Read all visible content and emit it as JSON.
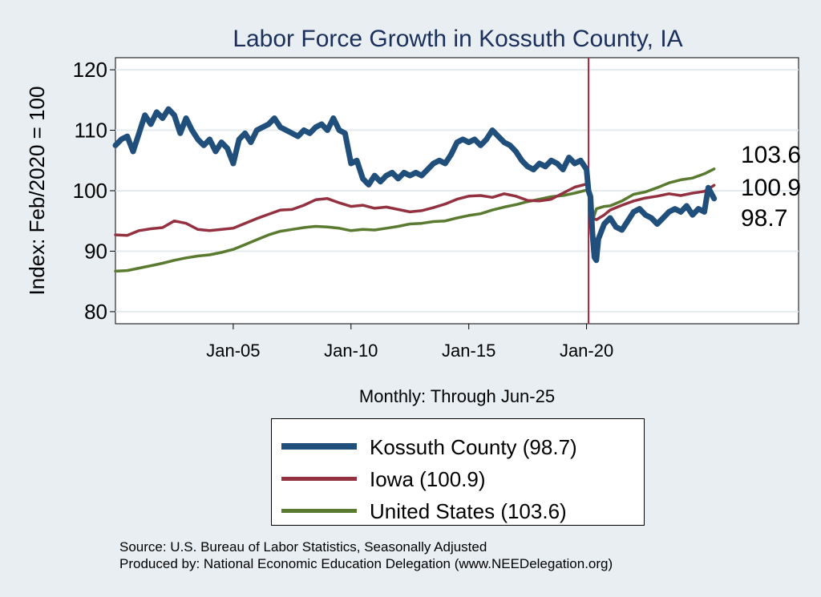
{
  "chart_data": {
    "type": "line",
    "title": "Labor Force Growth in Kossuth  County, IA",
    "xlabel": "Monthly: Through Jun-25",
    "ylabel": "Index: Feb/2020 = 100",
    "xlim": [
      "Jan-00",
      "Dec-28"
    ],
    "ylim": [
      78,
      122
    ],
    "x_ticks": [
      "Jan-05",
      "Jan-10",
      "Jan-15",
      "Jan-20"
    ],
    "y_ticks": [
      80,
      90,
      100,
      110,
      120
    ],
    "grid": true,
    "reference_line": {
      "x": "Feb-20",
      "color": "#b5243f"
    },
    "end_labels": [
      "103.6",
      "100.9",
      "98.7"
    ],
    "legend_position": "bottom",
    "series": [
      {
        "name": "Kossuth  County (98.7)",
        "color": "#1f4f7a",
        "points": [
          [
            "Jan-00",
            107.5
          ],
          [
            "Apr-00",
            108.5
          ],
          [
            "Jul-00",
            109.0
          ],
          [
            "Oct-00",
            106.5
          ],
          [
            "Jan-01",
            109.5
          ],
          [
            "Apr-01",
            112.5
          ],
          [
            "Jul-01",
            111.0
          ],
          [
            "Oct-01",
            113.0
          ],
          [
            "Jan-02",
            112.0
          ],
          [
            "Apr-02",
            113.5
          ],
          [
            "Jul-02",
            112.5
          ],
          [
            "Oct-02",
            109.5
          ],
          [
            "Jan-03",
            112.0
          ],
          [
            "Apr-03",
            110.0
          ],
          [
            "Jul-03",
            108.5
          ],
          [
            "Oct-03",
            107.5
          ],
          [
            "Jan-04",
            108.5
          ],
          [
            "Apr-04",
            106.5
          ],
          [
            "Jul-04",
            108.0
          ],
          [
            "Oct-04",
            107.0
          ],
          [
            "Jan-05",
            104.5
          ],
          [
            "Apr-05",
            108.5
          ],
          [
            "Jul-05",
            109.5
          ],
          [
            "Oct-05",
            108.0
          ],
          [
            "Jan-06",
            110.0
          ],
          [
            "Apr-06",
            110.5
          ],
          [
            "Jul-06",
            111.0
          ],
          [
            "Oct-06",
            112.0
          ],
          [
            "Jan-07",
            110.5
          ],
          [
            "Apr-07",
            110.0
          ],
          [
            "Jul-07",
            109.5
          ],
          [
            "Oct-07",
            109.0
          ],
          [
            "Jan-08",
            110.0
          ],
          [
            "Apr-08",
            109.5
          ],
          [
            "Jul-08",
            110.5
          ],
          [
            "Oct-08",
            111.0
          ],
          [
            "Jan-09",
            110.0
          ],
          [
            "Apr-09",
            112.0
          ],
          [
            "Jul-09",
            110.0
          ],
          [
            "Oct-09",
            109.5
          ],
          [
            "Jan-10",
            104.5
          ],
          [
            "Apr-10",
            105.0
          ],
          [
            "Jul-10",
            102.0
          ],
          [
            "Oct-10",
            101.0
          ],
          [
            "Jan-11",
            102.5
          ],
          [
            "Apr-11",
            101.5
          ],
          [
            "Jul-11",
            102.5
          ],
          [
            "Oct-11",
            103.0
          ],
          [
            "Jan-12",
            102.0
          ],
          [
            "Apr-12",
            103.0
          ],
          [
            "Jul-12",
            102.5
          ],
          [
            "Oct-12",
            103.0
          ],
          [
            "Jan-13",
            102.5
          ],
          [
            "Apr-13",
            103.5
          ],
          [
            "Jul-13",
            104.5
          ],
          [
            "Oct-13",
            105.0
          ],
          [
            "Jan-14",
            104.5
          ],
          [
            "Apr-14",
            106.0
          ],
          [
            "Jul-14",
            108.0
          ],
          [
            "Oct-14",
            108.5
          ],
          [
            "Jan-15",
            108.0
          ],
          [
            "Apr-15",
            108.5
          ],
          [
            "Jul-15",
            107.5
          ],
          [
            "Oct-15",
            108.5
          ],
          [
            "Jan-16",
            110.0
          ],
          [
            "Apr-16",
            109.0
          ],
          [
            "Jul-16",
            108.0
          ],
          [
            "Oct-16",
            107.5
          ],
          [
            "Jan-17",
            106.5
          ],
          [
            "Apr-17",
            105.0
          ],
          [
            "Jul-17",
            104.0
          ],
          [
            "Oct-17",
            103.5
          ],
          [
            "Jan-18",
            104.5
          ],
          [
            "Apr-18",
            104.0
          ],
          [
            "Jul-18",
            105.0
          ],
          [
            "Oct-18",
            104.5
          ],
          [
            "Jan-19",
            103.5
          ],
          [
            "Apr-19",
            105.5
          ],
          [
            "Jul-19",
            104.5
          ],
          [
            "Oct-19",
            105.0
          ],
          [
            "Jan-20",
            103.5
          ],
          [
            "Feb-20",
            100.0
          ],
          [
            "Mar-20",
            99.0
          ],
          [
            "Apr-20",
            93.0
          ],
          [
            "May-20",
            89.0
          ],
          [
            "Jun-20",
            88.5
          ],
          [
            "Jul-20",
            92.0
          ],
          [
            "Oct-20",
            94.5
          ],
          [
            "Jan-21",
            95.5
          ],
          [
            "Apr-21",
            94.0
          ],
          [
            "Jul-21",
            93.5
          ],
          [
            "Oct-21",
            95.0
          ],
          [
            "Jan-22",
            96.5
          ],
          [
            "Apr-22",
            97.0
          ],
          [
            "Jul-22",
            96.0
          ],
          [
            "Oct-22",
            95.5
          ],
          [
            "Jan-23",
            94.5
          ],
          [
            "Apr-23",
            95.5
          ],
          [
            "Jul-23",
            96.5
          ],
          [
            "Oct-23",
            97.0
          ],
          [
            "Jan-24",
            96.5
          ],
          [
            "Apr-24",
            97.5
          ],
          [
            "Jul-24",
            96.0
          ],
          [
            "Oct-24",
            97.0
          ],
          [
            "Jan-25",
            96.5
          ],
          [
            "Mar-25",
            100.5
          ],
          [
            "Jun-25",
            98.7
          ]
        ]
      },
      {
        "name": "Iowa (100.9)",
        "color": "#943140",
        "points": [
          [
            "Jan-00",
            92.7
          ],
          [
            "Jul-00",
            92.6
          ],
          [
            "Jan-01",
            93.4
          ],
          [
            "Jul-01",
            93.7
          ],
          [
            "Jan-02",
            93.9
          ],
          [
            "Jul-02",
            95.0
          ],
          [
            "Jan-03",
            94.6
          ],
          [
            "Jul-03",
            93.6
          ],
          [
            "Jan-04",
            93.4
          ],
          [
            "Jul-04",
            93.6
          ],
          [
            "Jan-05",
            93.8
          ],
          [
            "Jul-05",
            94.6
          ],
          [
            "Jan-06",
            95.4
          ],
          [
            "Jul-06",
            96.1
          ],
          [
            "Jan-07",
            96.8
          ],
          [
            "Jul-07",
            96.9
          ],
          [
            "Jan-08",
            97.6
          ],
          [
            "Jul-08",
            98.5
          ],
          [
            "Jan-09",
            98.7
          ],
          [
            "Jul-09",
            98.0
          ],
          [
            "Jan-10",
            97.4
          ],
          [
            "Jul-10",
            97.6
          ],
          [
            "Jan-11",
            97.1
          ],
          [
            "Jul-11",
            97.3
          ],
          [
            "Jan-12",
            96.9
          ],
          [
            "Jul-12",
            96.5
          ],
          [
            "Jan-13",
            96.7
          ],
          [
            "Jul-13",
            97.2
          ],
          [
            "Jan-14",
            97.8
          ],
          [
            "Jul-14",
            98.6
          ],
          [
            "Jan-15",
            99.1
          ],
          [
            "Jul-15",
            99.2
          ],
          [
            "Jan-16",
            98.9
          ],
          [
            "Jul-16",
            99.5
          ],
          [
            "Jan-17",
            99.1
          ],
          [
            "Jul-17",
            98.4
          ],
          [
            "Jan-18",
            98.3
          ],
          [
            "Jul-18",
            98.6
          ],
          [
            "Jan-19",
            99.6
          ],
          [
            "Jul-19",
            100.6
          ],
          [
            "Jan-20",
            101.1
          ],
          [
            "Feb-20",
            100.0
          ],
          [
            "Mar-20",
            98.5
          ],
          [
            "Apr-20",
            95.5
          ],
          [
            "Jun-20",
            95.2
          ],
          [
            "Oct-20",
            96.0
          ],
          [
            "Jan-21",
            96.8
          ],
          [
            "Jul-21",
            97.6
          ],
          [
            "Jan-22",
            98.3
          ],
          [
            "Jul-22",
            98.8
          ],
          [
            "Jan-23",
            99.1
          ],
          [
            "Jul-23",
            99.5
          ],
          [
            "Jan-24",
            99.2
          ],
          [
            "Jul-24",
            99.6
          ],
          [
            "Jan-25",
            99.9
          ],
          [
            "Jun-25",
            100.9
          ]
        ]
      },
      {
        "name": "United States (103.6)",
        "color": "#5a7a2f",
        "points": [
          [
            "Jan-00",
            86.7
          ],
          [
            "Jul-00",
            86.8
          ],
          [
            "Jan-01",
            87.2
          ],
          [
            "Jul-01",
            87.6
          ],
          [
            "Jan-02",
            88.0
          ],
          [
            "Jul-02",
            88.5
          ],
          [
            "Jan-03",
            88.9
          ],
          [
            "Jul-03",
            89.2
          ],
          [
            "Jan-04",
            89.4
          ],
          [
            "Jul-04",
            89.8
          ],
          [
            "Jan-05",
            90.3
          ],
          [
            "Jul-05",
            91.1
          ],
          [
            "Jan-06",
            91.9
          ],
          [
            "Jul-06",
            92.7
          ],
          [
            "Jan-07",
            93.3
          ],
          [
            "Jul-07",
            93.6
          ],
          [
            "Jan-08",
            93.9
          ],
          [
            "Jul-08",
            94.1
          ],
          [
            "Jan-09",
            94.0
          ],
          [
            "Jul-09",
            93.8
          ],
          [
            "Jan-10",
            93.4
          ],
          [
            "Jul-10",
            93.6
          ],
          [
            "Jan-11",
            93.5
          ],
          [
            "Jul-11",
            93.8
          ],
          [
            "Jan-12",
            94.1
          ],
          [
            "Jul-12",
            94.5
          ],
          [
            "Jan-13",
            94.6
          ],
          [
            "Jul-13",
            94.9
          ],
          [
            "Jan-14",
            95.0
          ],
          [
            "Jul-14",
            95.5
          ],
          [
            "Jan-15",
            95.9
          ],
          [
            "Jul-15",
            96.2
          ],
          [
            "Jan-16",
            96.8
          ],
          [
            "Jul-16",
            97.3
          ],
          [
            "Jan-17",
            97.7
          ],
          [
            "Jul-17",
            98.2
          ],
          [
            "Jan-18",
            98.6
          ],
          [
            "Jul-18",
            99.0
          ],
          [
            "Jan-19",
            99.2
          ],
          [
            "Jul-19",
            99.6
          ],
          [
            "Jan-20",
            100.1
          ],
          [
            "Feb-20",
            100.0
          ],
          [
            "Mar-20",
            98.5
          ],
          [
            "Apr-20",
            95.0
          ],
          [
            "May-20",
            96.0
          ],
          [
            "Jun-20",
            97.0
          ],
          [
            "Oct-20",
            97.4
          ],
          [
            "Jan-21",
            97.5
          ],
          [
            "Jul-21",
            98.3
          ],
          [
            "Jan-22",
            99.4
          ],
          [
            "Jul-22",
            99.8
          ],
          [
            "Jan-23",
            100.5
          ],
          [
            "Jul-23",
            101.3
          ],
          [
            "Jan-24",
            101.8
          ],
          [
            "Jul-24",
            102.1
          ],
          [
            "Jan-25",
            102.8
          ],
          [
            "Jun-25",
            103.6
          ]
        ]
      }
    ]
  },
  "source": {
    "line1": "Source: U.S. Bureau of Labor Statistics, Seasonally Adjusted",
    "line2": "Produced by: National Economic Education Delegation (www.NEEDelegation.org)"
  }
}
